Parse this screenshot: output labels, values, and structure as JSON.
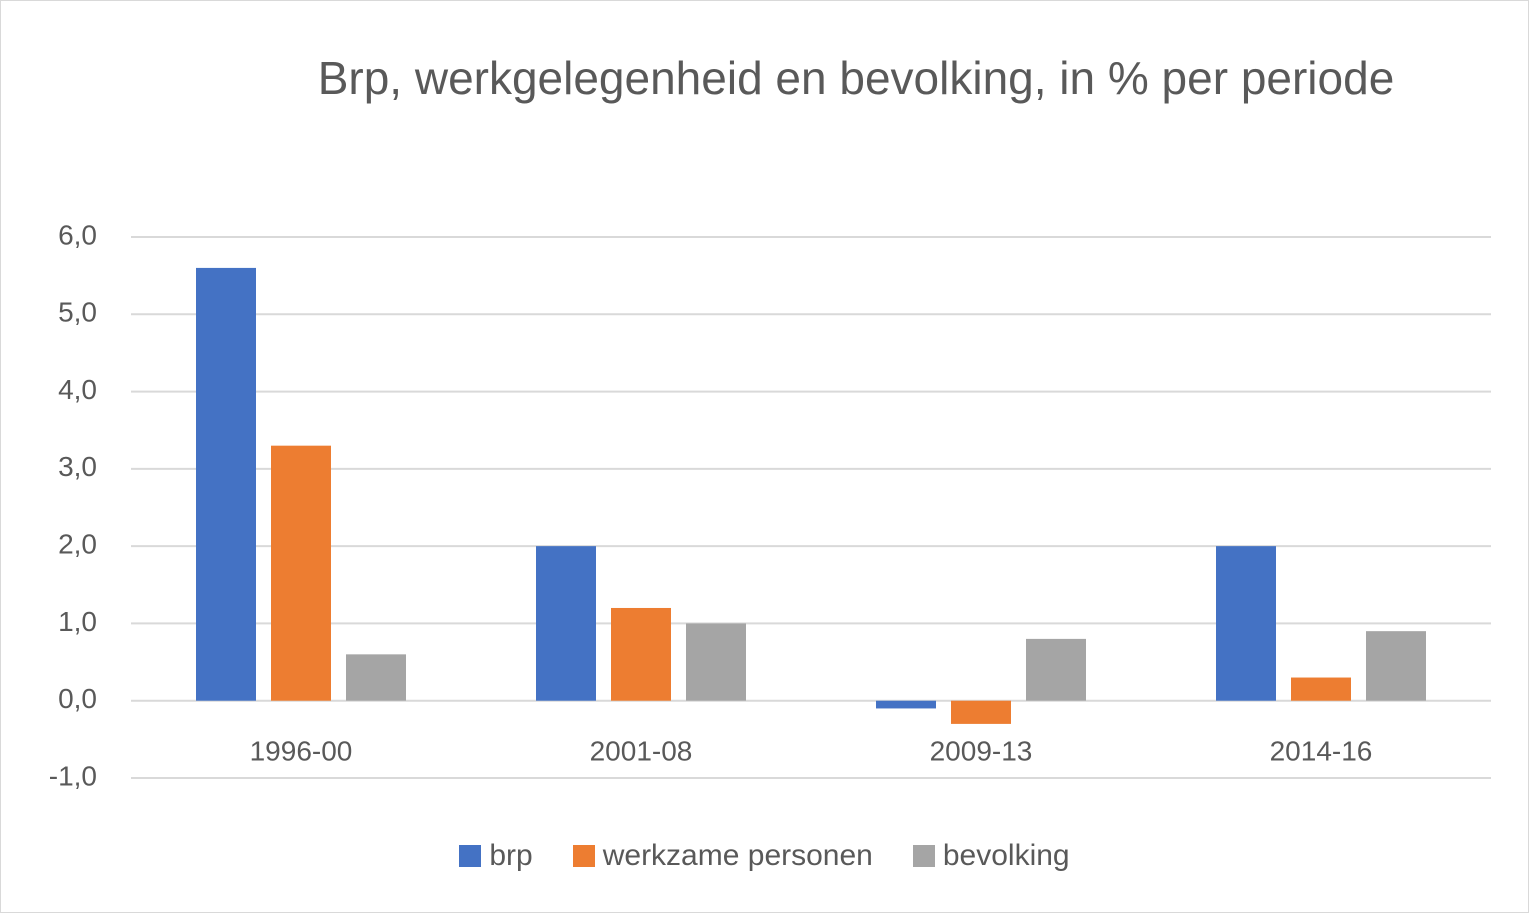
{
  "chart_data": {
    "type": "bar",
    "title": "Brp, werkgelegenheid en bevolking, in % per periode",
    "categories": [
      "1996-00",
      "2001-08",
      "2009-13",
      "2014-16"
    ],
    "series": [
      {
        "name": "brp",
        "color": "#4472c4",
        "values": [
          5.6,
          2.0,
          -0.1,
          2.0
        ]
      },
      {
        "name": "werkzame personen",
        "color": "#ed7d31",
        "values": [
          3.3,
          1.2,
          -0.3,
          0.3
        ]
      },
      {
        "name": "bevolking",
        "color": "#a5a5a5",
        "values": [
          0.6,
          1.0,
          0.8,
          0.9
        ]
      }
    ],
    "ylim": [
      -1,
      6
    ],
    "yticks": [
      {
        "value": -1,
        "label": "-1,0"
      },
      {
        "value": 0,
        "label": "0,0"
      },
      {
        "value": 1,
        "label": "1,0"
      },
      {
        "value": 2,
        "label": "2,0"
      },
      {
        "value": 3,
        "label": "3,0"
      },
      {
        "value": 4,
        "label": "4,0"
      },
      {
        "value": 5,
        "label": "5,0"
      },
      {
        "value": 6,
        "label": "6,0"
      }
    ],
    "grid": true,
    "legend": "bottom"
  }
}
